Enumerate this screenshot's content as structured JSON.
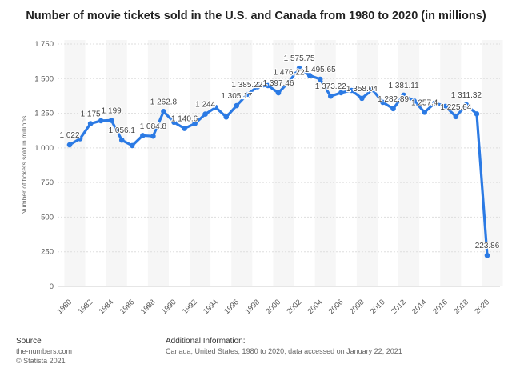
{
  "chart_data": {
    "type": "line",
    "title": "Number of movie tickets sold in the U.S. and Canada from 1980 to 2020 (in millions)",
    "ylabel": "Number of tickets sold in millions",
    "xlabel": "",
    "ylim": [
      0,
      1750
    ],
    "yticks": [
      0,
      250,
      500,
      750,
      1000,
      1250,
      1500,
      1750
    ],
    "ytick_labels": [
      "0",
      "250",
      "500",
      "750",
      "1 000",
      "1 250",
      "1 500",
      "1 750"
    ],
    "xtick_labels": [
      "1980",
      "1982",
      "1984",
      "1986",
      "1988",
      "1990",
      "1992",
      "1994",
      "1996",
      "1998",
      "2000",
      "2002",
      "2004",
      "2006",
      "2008",
      "2010",
      "2012",
      "2014",
      "2016",
      "2018",
      "2020"
    ],
    "grid": true,
    "color": "#2b7ae4",
    "x": [
      1980,
      1981,
      1982,
      1983,
      1984,
      1985,
      1986,
      1987,
      1988,
      1989,
      1990,
      1991,
      1992,
      1993,
      1994,
      1995,
      1996,
      1997,
      1998,
      1999,
      2000,
      2001,
      2002,
      2003,
      2004,
      2005,
      2006,
      2007,
      2008,
      2009,
      2010,
      2011,
      2012,
      2013,
      2014,
      2015,
      2016,
      2017,
      2018,
      2019,
      2020
    ],
    "values": [
      1022,
      1066,
      1175,
      1196,
      1199,
      1056.1,
      1017,
      1089,
      1084.8,
      1262.8,
      1185,
      1140.6,
      1175,
      1244,
      1292,
      1223,
      1305.17,
      1385.22,
      1441,
      1450,
      1397.46,
      1476.22,
      1575.75,
      1523,
      1495.65,
      1373.22,
      1398,
      1415,
      1358.04,
      1421,
      1329,
      1282.89,
      1381.11,
      1339,
      1257.4,
      1325,
      1300,
      1225.64,
      1311.32,
      1245,
      223.86
    ],
    "data_labels": [
      "1 022",
      null,
      "1 175",
      null,
      "1 199",
      "1 056.1",
      null,
      null,
      "1 084.8",
      "1 262.8",
      null,
      "1 140.6",
      null,
      "1 244",
      null,
      null,
      "1 305.17",
      "1 385.22",
      null,
      null,
      "1 397.46",
      "1 476.22",
      "1 575.75",
      null,
      "1 495.65",
      "1 373.22",
      null,
      null,
      "1 358.04",
      null,
      null,
      "1 282.89",
      "1 381.11",
      null,
      "1 257.4",
      null,
      null,
      "1 225.64",
      "1 311.32",
      null,
      "223.86"
    ]
  },
  "footer": {
    "source_heading": "Source",
    "source_lines": [
      "the-numbers.com",
      "© Statista 2021"
    ],
    "info_heading": "Additional Information:",
    "info_text": "Canada; United States; 1980 to 2020; data accessed on January 22, 2021"
  }
}
